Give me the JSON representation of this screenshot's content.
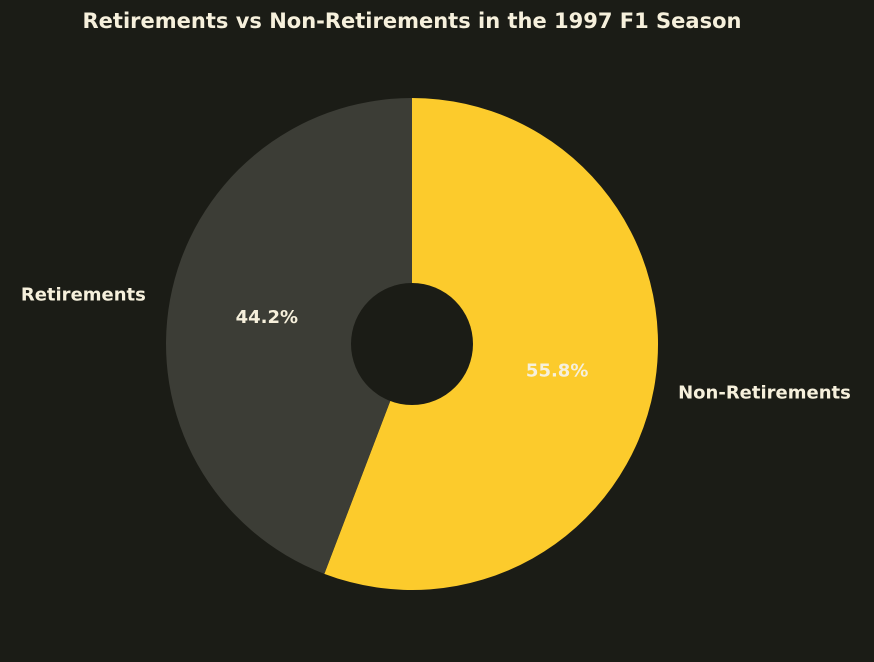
{
  "chart_data": {
    "type": "pie",
    "title": "Retirements vs Non-Retirements in the 1997 F1 Season",
    "donut": true,
    "start_angle": "12 o'clock",
    "direction": "clockwise",
    "slices": [
      {
        "label": "Non-Retirements",
        "value": 55.8,
        "pct_label": "55.8%",
        "color": "#fccb2c"
      },
      {
        "label": "Retirements",
        "value": 44.2,
        "pct_label": "44.2%",
        "color": "#3c3d36"
      }
    ]
  },
  "colors": {
    "background": "#1b1c16",
    "text": "#f6f0dc"
  }
}
